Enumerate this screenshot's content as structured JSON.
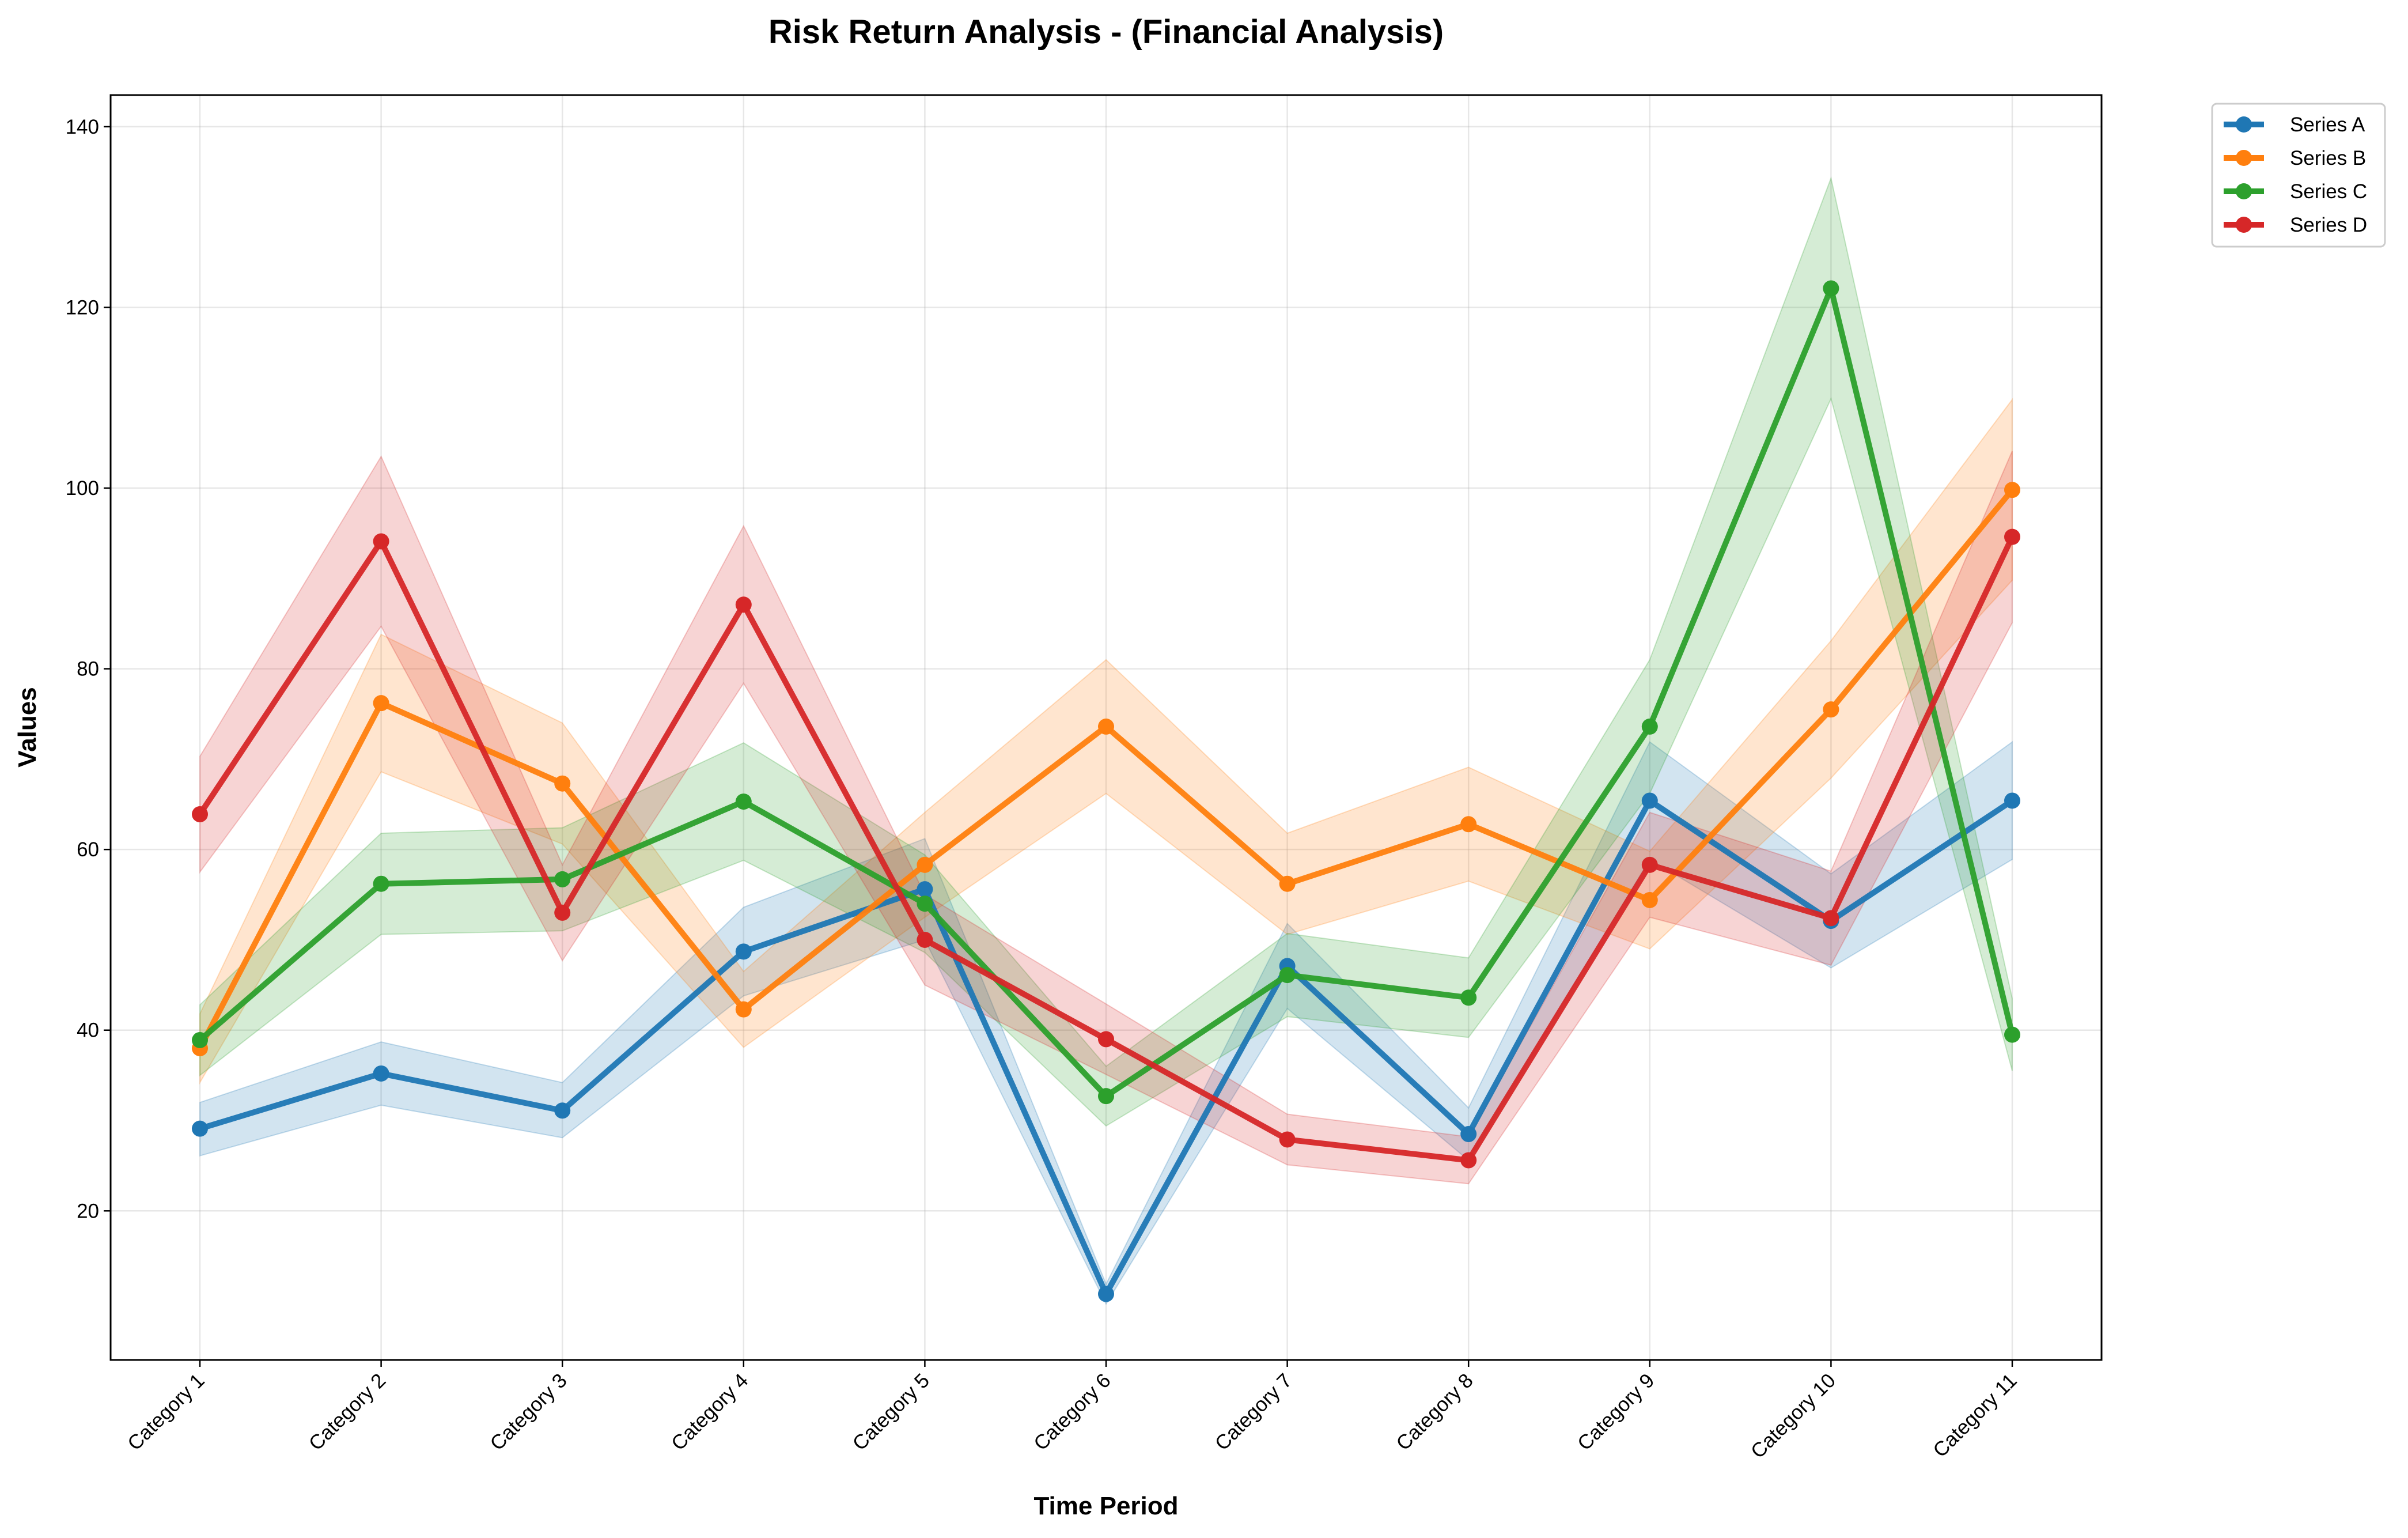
{
  "chart_data": {
    "type": "line",
    "title": "Risk Return Analysis - (Financial Analysis)",
    "xlabel": "Time Period",
    "ylabel": "Values",
    "ylim": [
      3.5,
      143.5
    ],
    "yticks": [
      20,
      40,
      60,
      80,
      100,
      120,
      140
    ],
    "grid": true,
    "legend_position": "outside-top-right",
    "categories": [
      "Category 1",
      "Category 2",
      "Category 3",
      "Category 4",
      "Category 5",
      "Category 6",
      "Category 7",
      "Category 8",
      "Category 9",
      "Category 10",
      "Category 11"
    ],
    "series": [
      {
        "name": "Series A",
        "color": "#1f77b4",
        "values": [
          29.1,
          35.2,
          31.1,
          48.7,
          55.6,
          10.8,
          47.1,
          28.5,
          65.4,
          52.1,
          65.4
        ],
        "band_lower": [
          26.1,
          31.7,
          28.1,
          43.8,
          50.0,
          9.7,
          42.4,
          25.6,
          58.9,
          46.9,
          58.9
        ],
        "band_upper": [
          32.0,
          38.7,
          34.2,
          53.6,
          61.2,
          11.9,
          51.8,
          31.4,
          71.9,
          57.3,
          71.9
        ]
      },
      {
        "name": "Series B",
        "color": "#ff7f0e",
        "values": [
          38.0,
          76.2,
          67.3,
          42.3,
          58.3,
          73.6,
          56.2,
          62.8,
          54.4,
          75.5,
          99.8
        ],
        "band_lower": [
          34.2,
          68.6,
          60.6,
          38.1,
          52.5,
          66.2,
          50.6,
          56.5,
          49.0,
          67.9,
          89.8
        ],
        "band_upper": [
          41.8,
          83.8,
          74.0,
          46.5,
          64.1,
          81.0,
          61.8,
          69.1,
          59.8,
          83.1,
          109.8
        ]
      },
      {
        "name": "Series C",
        "color": "#2ca02c",
        "values": [
          38.9,
          56.2,
          56.7,
          65.3,
          54.0,
          32.7,
          46.1,
          43.6,
          73.6,
          122.1,
          39.5
        ],
        "band_lower": [
          35.0,
          50.6,
          51.0,
          58.8,
          48.6,
          29.4,
          41.5,
          39.2,
          66.2,
          109.9,
          35.5
        ],
        "band_upper": [
          42.8,
          61.8,
          62.4,
          71.8,
          59.4,
          36.0,
          50.7,
          48.0,
          81.0,
          134.3,
          43.5
        ]
      },
      {
        "name": "Series D",
        "color": "#d62728",
        "values": [
          63.9,
          94.1,
          53.0,
          87.1,
          50.0,
          39.0,
          27.9,
          25.6,
          58.3,
          52.4,
          94.6
        ],
        "band_lower": [
          57.5,
          84.7,
          47.7,
          78.4,
          45.0,
          35.1,
          25.1,
          23.0,
          52.5,
          47.2,
          85.1
        ],
        "band_upper": [
          70.3,
          103.5,
          58.3,
          95.8,
          55.0,
          42.9,
          30.7,
          28.2,
          64.1,
          57.6,
          104.1
        ]
      }
    ]
  }
}
